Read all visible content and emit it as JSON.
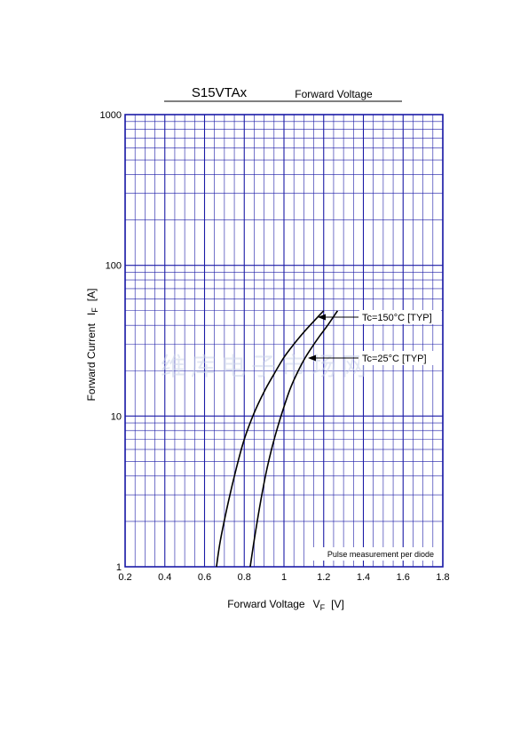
{
  "chart_data": {
    "type": "line",
    "title": "S15VTAx",
    "subtitle": "Forward Voltage",
    "xlabel": "Forward Voltage",
    "xlabel_symbol": "V",
    "xlabel_subscript": "F",
    "xlabel_unit": "[V]",
    "ylabel": "Forward Current",
    "ylabel_symbol": "I",
    "ylabel_subscript": "F",
    "ylabel_unit": "[A]",
    "xlim": [
      0.2,
      1.8
    ],
    "ylim": [
      1,
      1000
    ],
    "yscale": "log",
    "grid": true,
    "x_ticks": [
      "0.2",
      "0.4",
      "0.6",
      "0.8",
      "1",
      "1.2",
      "1.4",
      "1.6",
      "1.8"
    ],
    "y_ticks": [
      "1",
      "10",
      "100",
      "1000"
    ],
    "note": "Pulse measurement per diode",
    "watermark": "维库电子市场网",
    "colors": {
      "grid": "#1a1aa6",
      "curve": "#000000",
      "text": "#000000"
    },
    "series": [
      {
        "name": "Tc=150°C [TYP]",
        "x": [
          0.66,
          0.68,
          0.72,
          0.76,
          0.8,
          0.85,
          0.9,
          0.95,
          1.0,
          1.05,
          1.1,
          1.15,
          1.2
        ],
        "y": [
          1.0,
          1.5,
          2.7,
          4.5,
          7.0,
          10.5,
          14.5,
          19.0,
          24.5,
          30.0,
          36.0,
          42.5,
          50.0
        ]
      },
      {
        "name": "Tc=25°C [TYP]",
        "x": [
          0.83,
          0.85,
          0.88,
          0.91,
          0.94,
          0.97,
          1.0,
          1.03,
          1.06,
          1.1,
          1.14,
          1.18,
          1.22,
          1.27
        ],
        "y": [
          1.0,
          1.5,
          2.6,
          4.2,
          6.2,
          8.6,
          11.5,
          15.0,
          18.5,
          23.5,
          28.5,
          34.0,
          40.0,
          50.0
        ]
      }
    ]
  }
}
